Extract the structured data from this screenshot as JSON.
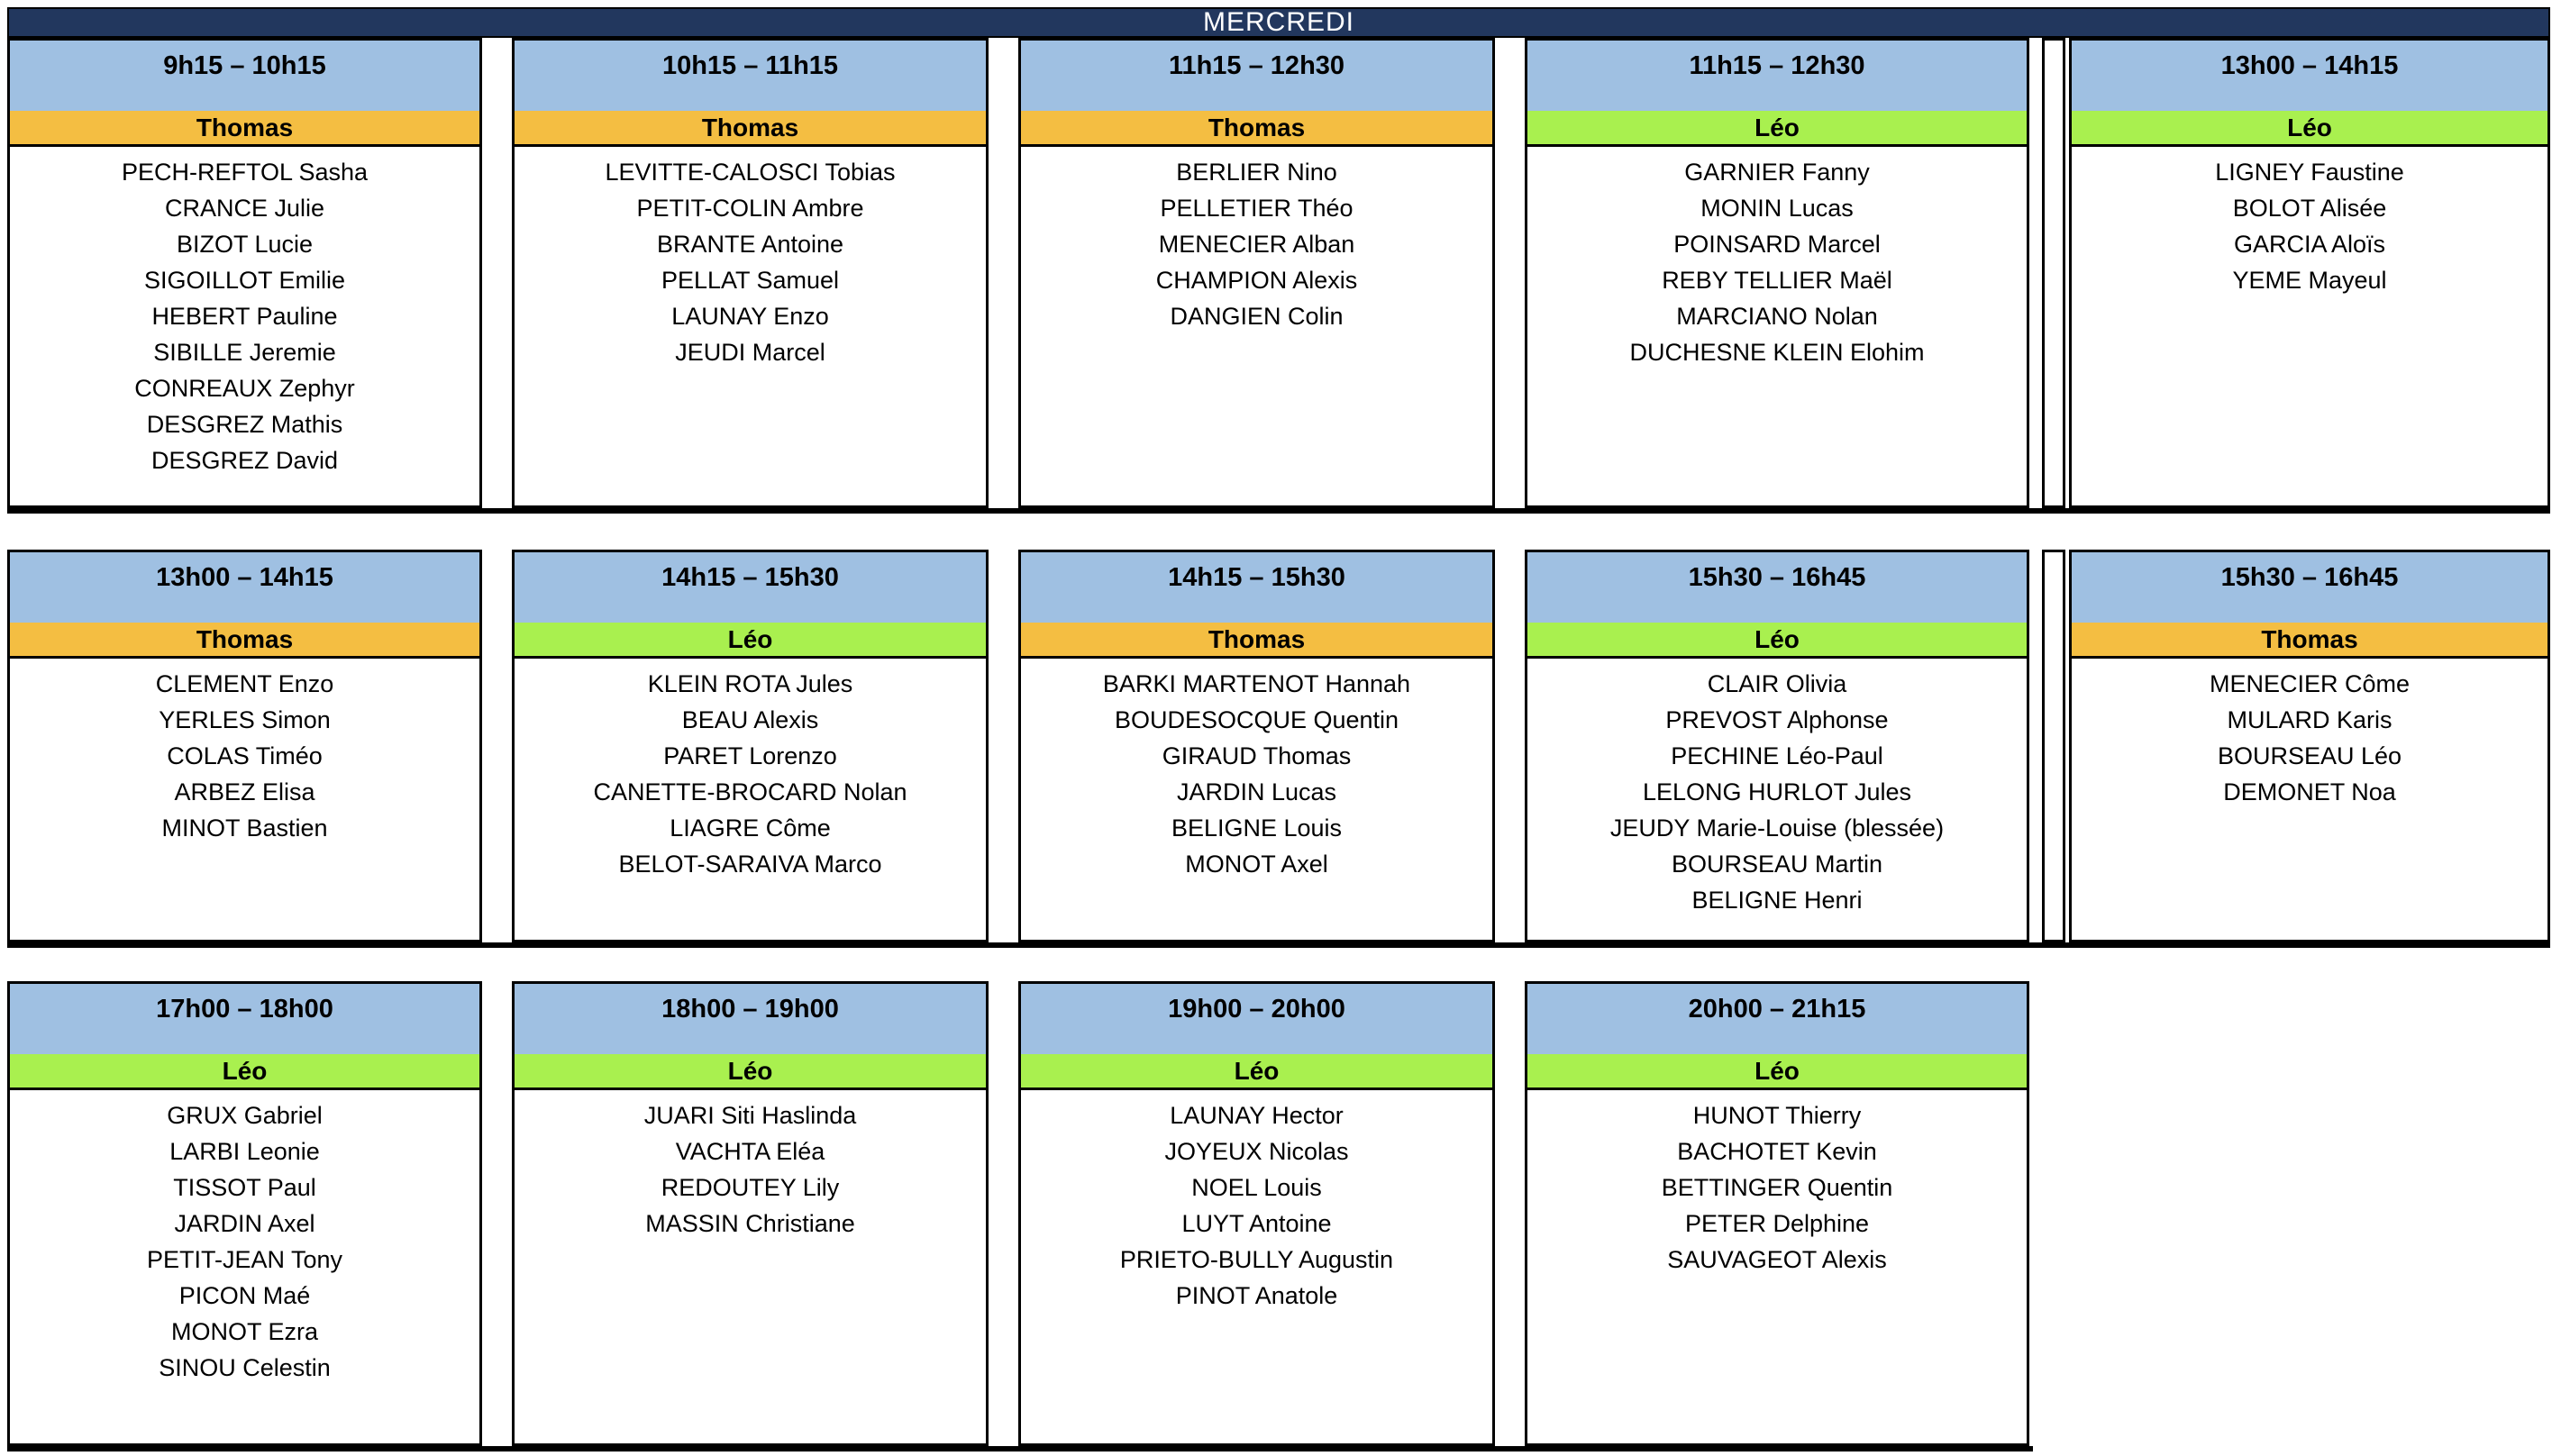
{
  "title": "MERCREDI",
  "colors": {
    "navy": "#22375E",
    "blue": "#9FC0E2",
    "border": "#000000",
    "white": "#FFFFFF"
  },
  "coaches": {
    "Thomas": {
      "band_color": "#F4BE42"
    },
    "Léo": {
      "band_color": "#A9F04F"
    }
  },
  "rows": [
    {
      "trailing_strip": true,
      "slots": [
        {
          "time": "9h15 – 10h15",
          "coach": "Thomas",
          "students": [
            "PECH-REFTOL Sasha",
            "CRANCE Julie",
            "BIZOT Lucie",
            "SIGOILLOT Emilie",
            "HEBERT Pauline",
            "SIBILLE Jeremie",
            "CONREAUX Zephyr",
            "DESGREZ Mathis",
            "DESGREZ David"
          ]
        },
        {
          "time": "10h15 – 11h15",
          "coach": "Thomas",
          "students": [
            "LEVITTE-CALOSCI  Tobias",
            "PETIT-COLIN Ambre",
            "BRANTE Antoine",
            "PELLAT Samuel",
            "LAUNAY Enzo",
            "JEUDI Marcel"
          ]
        },
        {
          "time": "11h15 – 12h30",
          "coach": "Thomas",
          "students": [
            "BERLIER Nino",
            "PELLETIER Théo",
            "MENECIER Alban",
            "CHAMPION Alexis",
            "DANGIEN Colin"
          ]
        },
        {
          "time": "11h15 – 12h30",
          "coach": "Léo",
          "students": [
            "GARNIER Fanny",
            "MONIN Lucas",
            "POINSARD Marcel",
            "REBY TELLIER Maël",
            "MARCIANO Nolan",
            "DUCHESNE KLEIN Elohim"
          ]
        },
        {
          "time": "13h00 – 14h15",
          "coach": "Léo",
          "students": [
            "LIGNEY Faustine",
            "BOLOT Alisée",
            "GARCIA Aloïs",
            "YEME Mayeul"
          ]
        }
      ]
    },
    {
      "trailing_strip": true,
      "slots": [
        {
          "time": "13h00 – 14h15",
          "coach": "Thomas",
          "students": [
            "CLEMENT Enzo",
            "YERLES Simon",
            "COLAS Timéo",
            "ARBEZ Elisa",
            "MINOT Bastien"
          ]
        },
        {
          "time": "14h15 – 15h30",
          "coach": "Léo",
          "students": [
            "KLEIN ROTA Jules",
            "BEAU  Alexis",
            "PARET Lorenzo",
            "CANETTE-BROCARD Nolan",
            "LIAGRE Côme",
            "BELOT-SARAIVA Marco"
          ]
        },
        {
          "time": "14h15 – 15h30",
          "coach": "Thomas",
          "students": [
            "BARKI MARTENOT Hannah",
            "BOUDESOCQUE Quentin",
            "GIRAUD Thomas",
            "JARDIN Lucas",
            "BELIGNE Louis",
            "MONOT Axel"
          ]
        },
        {
          "time": "15h30 – 16h45",
          "coach": "Léo",
          "students": [
            "CLAIR Olivia",
            "PREVOST Alphonse",
            "PECHINE Léo-Paul",
            "LELONG HURLOT Jules",
            "JEUDY Marie-Louise (blessée)",
            "BOURSEAU Martin",
            "BELIGNE Henri"
          ]
        },
        {
          "time": "15h30 – 16h45",
          "coach": "Thomas",
          "students": [
            "MENECIER Côme",
            "MULARD Karis",
            "BOURSEAU Léo",
            "DEMONET Noa"
          ]
        }
      ]
    },
    {
      "trailing_strip": false,
      "slots": [
        {
          "time": "17h00 – 18h00",
          "coach": "Léo",
          "students": [
            "GRUX Gabriel",
            "LARBI Leonie",
            "TISSOT Paul",
            "JARDIN Axel",
            "PETIT-JEAN Tony",
            "PICON Maé",
            "MONOT Ezra",
            "SINOU Celestin"
          ]
        },
        {
          "time": "18h00 – 19h00",
          "coach": "Léo",
          "students": [
            "JUARI Siti Haslinda",
            "VACHTA Eléa",
            "REDOUTEY Lily",
            "MASSIN Christiane"
          ]
        },
        {
          "time": "19h00 – 20h00",
          "coach": "Léo",
          "students": [
            "LAUNAY Hector",
            "JOYEUX Nicolas",
            "NOEL Louis",
            "LUYT Antoine",
            "PRIETO-BULLY Augustin",
            "PINOT Anatole"
          ]
        },
        {
          "time": "20h00 – 21h15",
          "coach": "Léo",
          "students": [
            "HUNOT Thierry",
            "BACHOTET Kevin",
            "BETTINGER Quentin",
            "PETER Delphine",
            "SAUVAGEOT Alexis"
          ]
        }
      ]
    }
  ]
}
